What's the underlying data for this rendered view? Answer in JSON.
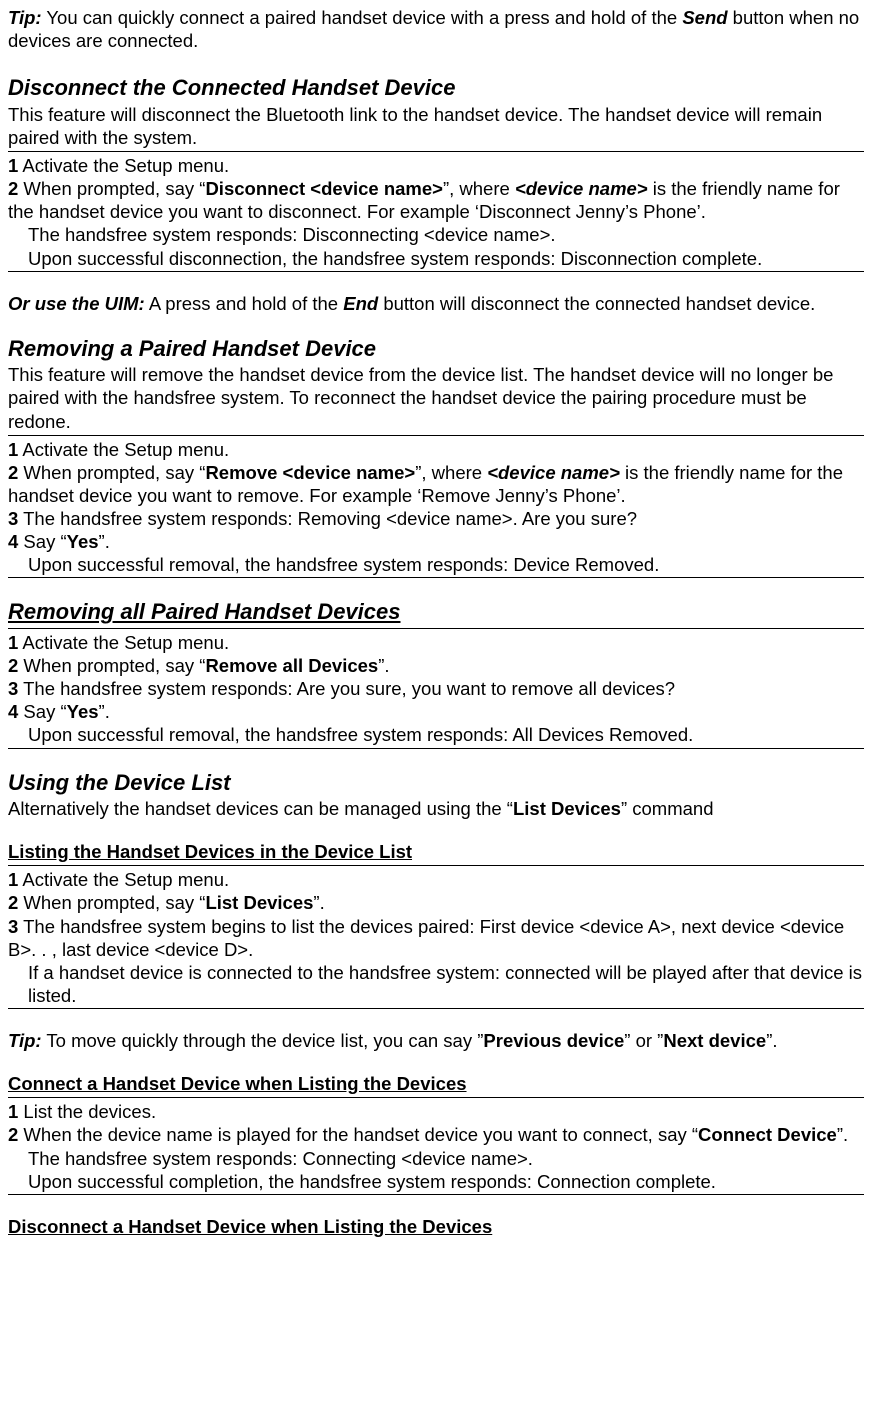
{
  "colors": {
    "text": "#000000",
    "background": "#ffffff",
    "rule": "#000000"
  },
  "typography": {
    "body_family": "Arial",
    "body_size_pt": 14,
    "heading_size_pt": 17,
    "line_height": 1.25
  },
  "tip1": {
    "label": "Tip:",
    "body": " You can quickly connect a paired handset device with a press and hold of the ",
    "keyword": "Send",
    "tail": " button when no devices are connected."
  },
  "disconnect": {
    "heading": "Disconnect the Connected Handset Device",
    "intro": "This feature will disconnect the Bluetooth link to the handset device. The handset device will remain paired with the system.",
    "step1_num": "1",
    "step1": " Activate the Setup menu.",
    "step2_num": "2",
    "step2_a": " When prompted, say “",
    "step2_cmd": "Disconnect <device name>",
    "step2_b": "”, where ",
    "step2_var": "<device name>",
    "step2_c": " is the friendly name for the handset device you want to disconnect. For example ‘Disconnect Jenny’s Phone’.",
    "resp1": "The handsfree system responds: Disconnecting <device name>.",
    "resp2": "Upon successful disconnection, the handsfree system responds: Disconnection complete.",
    "uim_label": "Or use the UIM:",
    "uim_a": " A press and hold of the ",
    "uim_key": "End",
    "uim_b": " button will disconnect the connected handset device."
  },
  "remove_one": {
    "heading": "Removing a Paired Handset Device",
    "intro": "This feature will remove the handset device from the device list. The handset device will no longer be paired with the handsfree system. To reconnect the handset device the pairing procedure must be redone.",
    "step1_num": "1",
    "step1": " Activate the Setup menu.",
    "step2_num": "2",
    "step2_a": " When prompted, say “",
    "step2_cmd": "Remove <device name>",
    "step2_b": "”, where ",
    "step2_var": "<device name>",
    "step2_c": " is the friendly name for the handset device you want to remove. For example ‘Remove Jenny’s Phone’.",
    "step3_num": "3",
    "step3": " The handsfree system responds: Removing <device name>. Are you sure?",
    "step4_num": "4",
    "step4_a": " Say “",
    "step4_cmd": "Yes",
    "step4_b": "”.",
    "resp": "Upon successful removal, the handsfree system responds: Device Removed."
  },
  "remove_all": {
    "heading": "Removing all Paired Handset Devices",
    "step1_num": "1",
    "step1": " Activate the Setup menu.",
    "step2_num": "2",
    "step2_a": " When prompted, say “",
    "step2_cmd": "Remove all Devices",
    "step2_b": "”.",
    "step3_num": "3",
    "step3": " The handsfree system responds: Are you sure, you want to remove all devices?",
    "step4_num": "4",
    "step4_a": " Say “",
    "step4_cmd": "Yes",
    "step4_b": "”.",
    "resp": "Upon successful removal, the handsfree system responds: All Devices Removed."
  },
  "device_list": {
    "heading": "Using the Device List",
    "intro_a": "Alternatively the handset devices can be managed using the “",
    "intro_cmd": "List Devices",
    "intro_b": "” command"
  },
  "listing": {
    "heading": "Listing the Handset Devices in the Device List",
    "step1_num": "1",
    "step1": " Activate the Setup menu.",
    "step2_num": "2",
    "step2_a": " When prompted, say “",
    "step2_cmd": "List Devices",
    "step2_b": "”.",
    "step3_num": "3",
    "step3": " The handsfree system begins to list the devices paired: First device <device A>, next device <device B>. . , last device <device D>.",
    "resp": "If a handset device is connected to the handsfree system:  connected will be played after that device is listed."
  },
  "tip2": {
    "label": "Tip:",
    "a": " To move quickly through the device list, you can say ”",
    "cmd1": "Previous device",
    "b": "” or ”",
    "cmd2": "Next device",
    "c": "”."
  },
  "connect_listing": {
    "heading": "Connect a Handset Device when Listing the Devices",
    "step1_num": "1",
    "step1": " List the devices.",
    "step2_num": "2",
    "step2_a": " When the device name is played for the handset device you want to connect, say “",
    "step2_cmd": "Connect Device",
    "step2_b": "”.",
    "resp1": "The handsfree system responds: Connecting <device name>.",
    "resp2": "Upon successful completion, the handsfree system responds: Connection complete."
  },
  "disconnect_listing": {
    "heading": "Disconnect a Handset Device when Listing the Devices"
  }
}
